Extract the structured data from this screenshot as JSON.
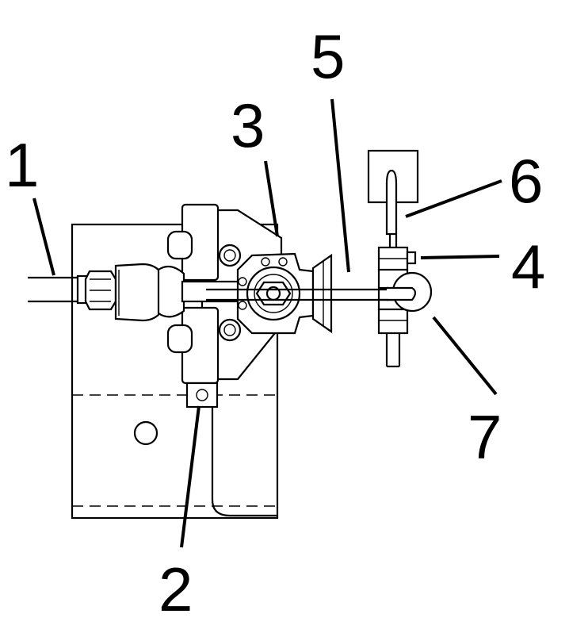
{
  "callouts": {
    "c1": "1",
    "c2": "2",
    "c3": "3",
    "c4": "4",
    "c5": "5",
    "c6": "6",
    "c7": "7"
  }
}
